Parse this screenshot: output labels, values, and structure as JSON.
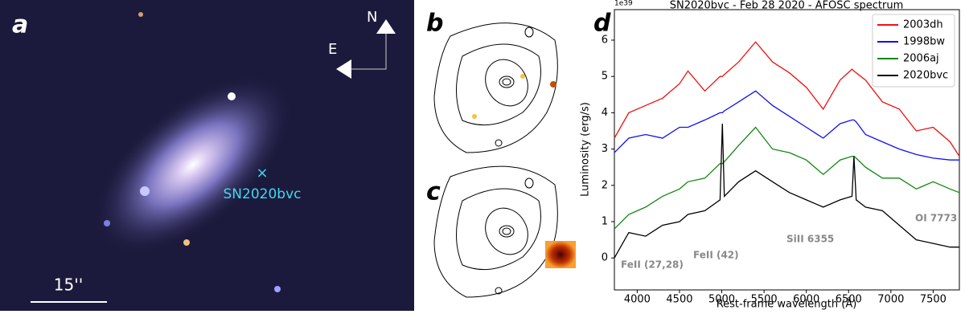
{
  "panels": {
    "a": {
      "label": "a",
      "north": "N",
      "east": "E",
      "target": "SN2020bvc",
      "scale": "15''"
    },
    "b": {
      "label": "b"
    },
    "c": {
      "label": "c"
    },
    "d": {
      "label": "d"
    }
  },
  "chart_data": {
    "type": "line",
    "title": "SN2020bvc - Feb 28 2020 - AFOSC spectrum",
    "x_label": "Rest-frame wavelength (Å)",
    "y_label": "Luminosity (erg/s)",
    "y_multiplier": "1e39",
    "x": [
      3730,
      3900,
      4100,
      4300,
      4500,
      4600,
      4800,
      4980,
      5007,
      5030,
      5200,
      5400,
      5600,
      5800,
      6000,
      6200,
      6400,
      6540,
      6563,
      6590,
      6700,
      6900,
      7100,
      7300,
      7500,
      7700,
      7810
    ],
    "series": [
      {
        "name": "2003dh",
        "color": "#ee1111",
        "values": [
          3.3,
          4.0,
          4.2,
          4.4,
          4.8,
          5.15,
          4.6,
          5.0,
          5.0,
          5.05,
          5.4,
          5.95,
          5.4,
          5.1,
          4.7,
          4.1,
          4.9,
          5.2,
          5.15,
          5.1,
          4.9,
          4.3,
          4.1,
          3.5,
          3.6,
          3.2,
          2.8
        ]
      },
      {
        "name": "1998bw",
        "color": "#1111ee",
        "values": [
          2.9,
          3.3,
          3.4,
          3.3,
          3.6,
          3.6,
          3.8,
          4.0,
          4.0,
          4.05,
          4.3,
          4.6,
          4.2,
          3.9,
          3.6,
          3.3,
          3.7,
          3.8,
          3.8,
          3.75,
          3.4,
          3.2,
          3.0,
          2.85,
          2.75,
          2.7,
          2.7
        ]
      },
      {
        "name": "2006aj",
        "color": "#118811",
        "values": [
          0.8,
          1.2,
          1.4,
          1.7,
          1.9,
          2.1,
          2.2,
          2.6,
          2.6,
          2.65,
          3.1,
          3.6,
          3.0,
          2.9,
          2.7,
          2.3,
          2.7,
          2.8,
          2.8,
          2.75,
          2.5,
          2.2,
          2.2,
          1.9,
          2.1,
          1.9,
          1.8
        ]
      },
      {
        "name": "2020bvc",
        "color": "#000000",
        "values": [
          0.0,
          0.7,
          0.6,
          0.9,
          1.0,
          1.2,
          1.3,
          1.6,
          3.7,
          1.7,
          2.1,
          2.4,
          2.1,
          1.8,
          1.6,
          1.4,
          1.6,
          1.7,
          2.8,
          1.6,
          1.4,
          1.3,
          0.9,
          0.5,
          0.4,
          0.3,
          0.3
        ]
      }
    ],
    "xlim": [
      3730,
      7810
    ],
    "ylim": [
      -0.88,
      6.84
    ],
    "xticks": [
      4000,
      4500,
      5000,
      5500,
      6000,
      6500,
      7000,
      7500
    ],
    "yticks": [
      0,
      1,
      2,
      3,
      4,
      5,
      6
    ],
    "legend": "upper right",
    "annotations": [
      "FeII (27,28)",
      "FeII (42)",
      "SiII 6355",
      "OI 7773"
    ]
  }
}
